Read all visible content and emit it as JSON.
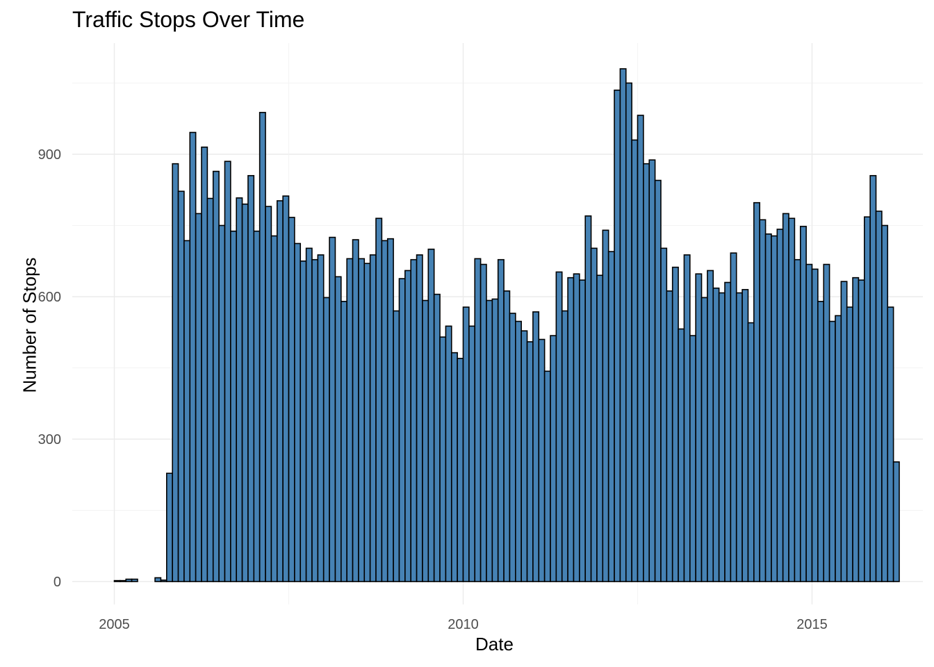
{
  "chart_data": {
    "type": "bar",
    "title": "Traffic Stops Over Time",
    "xlabel": "Date",
    "ylabel": "Number of Stops",
    "x_unit": "month",
    "x_start": "2005-01",
    "x_ticks": [
      "2005",
      "2010",
      "2015"
    ],
    "y_ticks": [
      0,
      300,
      600,
      900
    ],
    "ylim": [
      -48,
      1130
    ],
    "grid": true,
    "bar_fill": "#4682B4",
    "bar_stroke": "#000000",
    "values": [
      2,
      2,
      5,
      5,
      0,
      0,
      0,
      8,
      3,
      228,
      880,
      822,
      718,
      946,
      775,
      915,
      807,
      864,
      750,
      885,
      738,
      808,
      795,
      855,
      738,
      988,
      790,
      728,
      802,
      812,
      767,
      712,
      675,
      702,
      678,
      688,
      598,
      725,
      642,
      590,
      680,
      720,
      680,
      670,
      688,
      765,
      718,
      722,
      570,
      638,
      655,
      678,
      688,
      592,
      700,
      605,
      515,
      538,
      482,
      470,
      578,
      538,
      680,
      668,
      592,
      595,
      678,
      612,
      565,
      548,
      528,
      505,
      568,
      510,
      443,
      518,
      652,
      570,
      640,
      648,
      635,
      770,
      702,
      645,
      740,
      695,
      1035,
      1080,
      1050,
      930,
      982,
      880,
      888,
      845,
      702,
      612,
      662,
      532,
      688,
      518,
      648,
      598,
      655,
      618,
      608,
      630,
      692,
      608,
      615,
      545,
      798,
      762,
      732,
      728,
      742,
      775,
      765,
      678,
      748,
      668,
      658,
      590,
      668,
      548,
      560,
      632,
      578,
      640,
      635,
      768,
      855,
      780,
      750,
      578,
      252
    ]
  }
}
